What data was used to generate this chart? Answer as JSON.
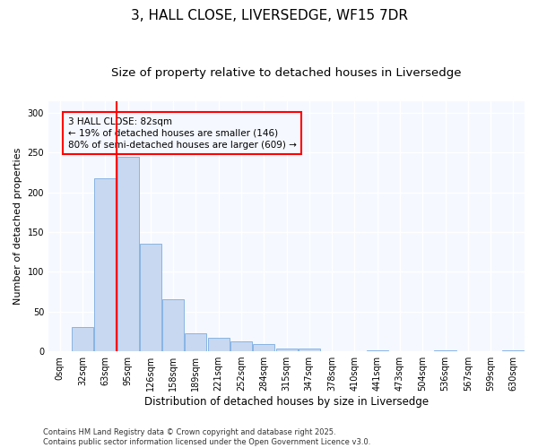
{
  "title": "3, HALL CLOSE, LIVERSEDGE, WF15 7DR",
  "subtitle": "Size of property relative to detached houses in Liversedge",
  "xlabel": "Distribution of detached houses by size in Liversedge",
  "ylabel": "Number of detached properties",
  "bar_color": "#c8d8f0",
  "bar_edge_color": "#7aace0",
  "vline_color": "red",
  "vline_x": 2.5,
  "annotation_text": "3 HALL CLOSE: 82sqm\n← 19% of detached houses are smaller (146)\n80% of semi-detached houses are larger (609) →",
  "annotation_box_color": "red",
  "categories": [
    "0sqm",
    "32sqm",
    "63sqm",
    "95sqm",
    "126sqm",
    "158sqm",
    "189sqm",
    "221sqm",
    "252sqm",
    "284sqm",
    "315sqm",
    "347sqm",
    "378sqm",
    "410sqm",
    "441sqm",
    "473sqm",
    "504sqm",
    "536sqm",
    "567sqm",
    "599sqm",
    "630sqm"
  ],
  "values": [
    0,
    30,
    218,
    245,
    135,
    65,
    23,
    17,
    13,
    9,
    4,
    3,
    0,
    0,
    1,
    0,
    0,
    1,
    0,
    0,
    1
  ],
  "ylim": [
    0,
    315
  ],
  "yticks": [
    0,
    50,
    100,
    150,
    200,
    250,
    300
  ],
  "background_color": "#ffffff",
  "plot_bg_color": "#f5f8ff",
  "grid_color": "#ffffff",
  "footer": "Contains HM Land Registry data © Crown copyright and database right 2025.\nContains public sector information licensed under the Open Government Licence v3.0.",
  "title_fontsize": 11,
  "subtitle_fontsize": 9.5,
  "xlabel_fontsize": 8.5,
  "ylabel_fontsize": 8,
  "tick_fontsize": 7,
  "footer_fontsize": 6,
  "ann_fontsize": 7.5
}
